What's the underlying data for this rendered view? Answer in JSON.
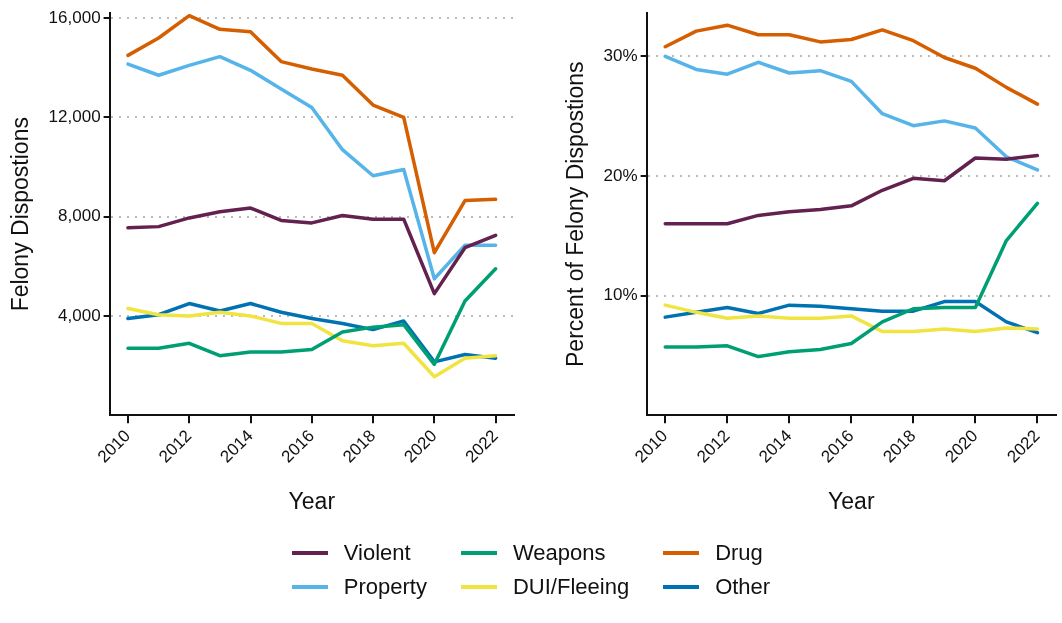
{
  "chart_data": [
    {
      "type": "line",
      "xlabel": "Year",
      "ylabel": "Felony Dispostions",
      "x": [
        2010,
        2011,
        2012,
        2013,
        2014,
        2015,
        2016,
        2017,
        2018,
        2019,
        2020,
        2021,
        2022
      ],
      "xlim": [
        2009.4,
        2022.6
      ],
      "xticks": [
        2010,
        2012,
        2014,
        2016,
        2018,
        2020,
        2022
      ],
      "ylim": [
        0,
        16200
      ],
      "yticks": [
        {
          "value": 4000,
          "label": "4,000"
        },
        {
          "value": 8000,
          "label": "8,000"
        },
        {
          "value": 12000,
          "label": "12,000"
        },
        {
          "value": 16000,
          "label": "16,000"
        }
      ],
      "grid": "y",
      "legend": "bottom",
      "marker": "none",
      "line_style": "solid",
      "series": [
        {
          "name": "Violent",
          "color": "#63214f",
          "values": [
            7550,
            7600,
            7950,
            8200,
            8350,
            7850,
            7750,
            8050,
            7900,
            7900,
            4900,
            6750,
            7250
          ]
        },
        {
          "name": "Weapons",
          "color": "#009e73",
          "values": [
            2700,
            2700,
            2900,
            2400,
            2550,
            2550,
            2650,
            3350,
            3550,
            3650,
            2050,
            4600,
            5900
          ]
        },
        {
          "name": "Drug",
          "color": "#d55e00",
          "values": [
            14500,
            15200,
            16100,
            15550,
            15450,
            14250,
            13950,
            13700,
            12500,
            12000,
            6550,
            8650,
            8700
          ]
        },
        {
          "name": "Property",
          "color": "#56b4e9",
          "values": [
            14150,
            13700,
            14100,
            14450,
            13900,
            13150,
            12400,
            10700,
            9650,
            9900,
            5500,
            6850,
            6850
          ]
        },
        {
          "name": "DUI/Fleeing",
          "color": "#f0e442",
          "values": [
            4300,
            4050,
            4000,
            4150,
            4000,
            3700,
            3700,
            3000,
            2800,
            2900,
            1550,
            2300,
            2400
          ]
        },
        {
          "name": "Other",
          "color": "#0072b2",
          "values": [
            3900,
            4050,
            4500,
            4200,
            4500,
            4150,
            3900,
            3700,
            3450,
            3800,
            2150,
            2450,
            2300
          ]
        }
      ]
    },
    {
      "type": "line",
      "xlabel": "Year",
      "ylabel": "Percent of Felony Dispostions",
      "x": [
        2010,
        2011,
        2012,
        2013,
        2014,
        2015,
        2016,
        2017,
        2018,
        2019,
        2020,
        2021,
        2022
      ],
      "xlim": [
        2009.4,
        2022.6
      ],
      "xticks": [
        2010,
        2012,
        2014,
        2016,
        2018,
        2020,
        2022
      ],
      "ylim": [
        0,
        33.6
      ],
      "yticks": [
        {
          "value": 10,
          "label": "10%"
        },
        {
          "value": 20,
          "label": "20%"
        },
        {
          "value": 30,
          "label": "30%"
        }
      ],
      "grid": "y",
      "legend": "bottom",
      "marker": "none",
      "line_style": "solid",
      "series": [
        {
          "name": "Violent",
          "color": "#63214f",
          "values": [
            16.0,
            16.0,
            16.0,
            16.7,
            17.0,
            17.2,
            17.5,
            18.8,
            19.8,
            19.6,
            21.5,
            21.4,
            21.7
          ]
        },
        {
          "name": "Weapons",
          "color": "#009e73",
          "values": [
            5.7,
            5.7,
            5.8,
            4.9,
            5.3,
            5.5,
            6.0,
            7.8,
            8.9,
            9.0,
            9.0,
            14.6,
            17.7
          ]
        },
        {
          "name": "Drug",
          "color": "#d55e00",
          "values": [
            30.8,
            32.1,
            32.6,
            31.8,
            31.8,
            31.2,
            31.4,
            32.2,
            31.3,
            29.9,
            29.0,
            27.4,
            26.0
          ]
        },
        {
          "name": "Property",
          "color": "#56b4e9",
          "values": [
            30.0,
            28.9,
            28.5,
            29.5,
            28.6,
            28.8,
            27.9,
            25.2,
            24.2,
            24.6,
            24.0,
            21.6,
            20.5
          ]
        },
        {
          "name": "DUI/Fleeing",
          "color": "#f0e442",
          "values": [
            9.2,
            8.6,
            8.1,
            8.3,
            8.1,
            8.1,
            8.3,
            7.0,
            7.0,
            7.2,
            7.0,
            7.3,
            7.2
          ]
        },
        {
          "name": "Other",
          "color": "#0072b2",
          "values": [
            8.2,
            8.6,
            9.0,
            8.5,
            9.2,
            9.1,
            8.9,
            8.7,
            8.7,
            9.5,
            9.5,
            7.8,
            6.9
          ]
        }
      ]
    }
  ]
}
